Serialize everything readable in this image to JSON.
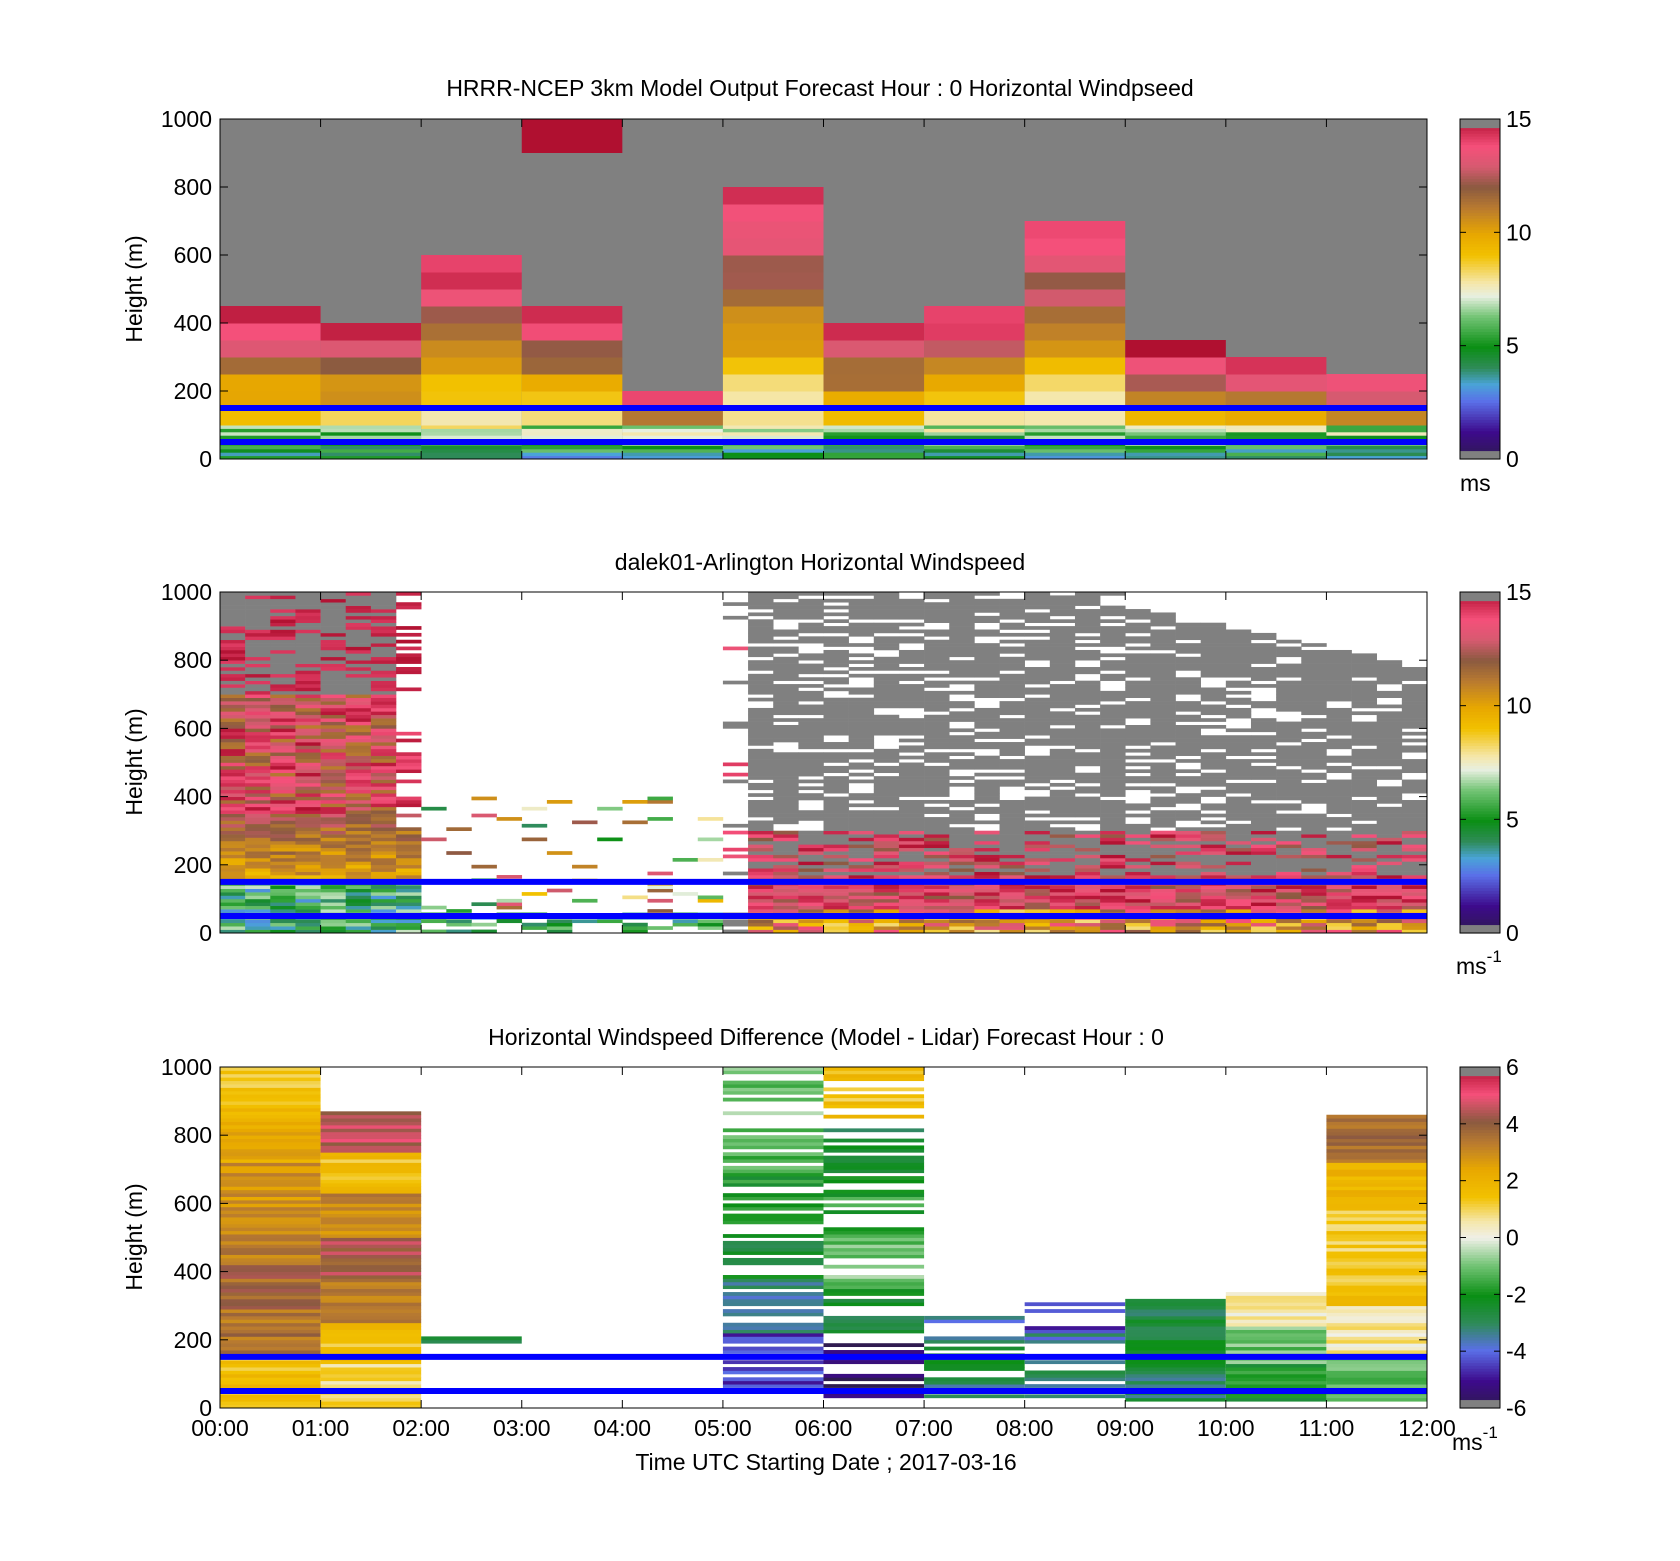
{
  "figure": {
    "xlabel": "Time UTC  Starting Date ; 2017-03-16",
    "x_tick_labels": [
      "00:00",
      "01:00",
      "02:00",
      "03:00",
      "04:00",
      "05:00",
      "06:00",
      "07:00",
      "08:00",
      "09:00",
      "10:00",
      "11:00",
      "12:00"
    ],
    "ref_line_color": "#0000ff",
    "ref_line_heights": [
      150,
      50
    ]
  },
  "chart_data": [
    {
      "type": "heatmap",
      "title": "HRRR-NCEP 3km Model Output   Forecast Hour : 0 Horizontal Windpseed",
      "ylabel": "Height (m)",
      "xlim": [
        0,
        12
      ],
      "ylim": [
        0,
        1000
      ],
      "y_ticks": [
        0,
        200,
        400,
        600,
        800,
        1000
      ],
      "y_tick_labels": [
        "0",
        "200",
        "400",
        "600",
        "800",
        "1000"
      ],
      "colorbar": {
        "min": 0,
        "max": 15,
        "ticks": [
          0,
          5,
          10,
          15
        ],
        "tick_labels": [
          "0",
          "5",
          "10",
          "15"
        ],
        "unit": "ms"
      },
      "background_color": "#808080",
      "columns": [
        {
          "hour": 0,
          "top": 450
        },
        {
          "hour": 1,
          "top": 400
        },
        {
          "hour": 2,
          "top": 600
        },
        {
          "hour": 3,
          "top": 450
        },
        {
          "hour": 4,
          "top": 200
        },
        {
          "hour": 5,
          "top": 800
        },
        {
          "hour": 6,
          "top": 400
        },
        {
          "hour": 7,
          "top": 450
        },
        {
          "hour": 8,
          "top": 700
        },
        {
          "hour": 9,
          "top": 350
        },
        {
          "hour": 10,
          "top": 300
        },
        {
          "hour": 11,
          "top": 250
        }
      ],
      "extra_cells": [
        {
          "hour": 3,
          "y0": 900,
          "y1": 1000,
          "value": 15
        }
      ]
    },
    {
      "type": "heatmap",
      "title": "dalek01-Arlington  Horizontal Windspeed",
      "ylabel": "Height (m)",
      "xlim": [
        0,
        12
      ],
      "ylim": [
        0,
        1000
      ],
      "y_ticks": [
        0,
        200,
        400,
        600,
        800,
        1000
      ],
      "y_tick_labels": [
        "0",
        "200",
        "400",
        "600",
        "800",
        "1000"
      ],
      "colorbar": {
        "min": 0,
        "max": 15,
        "ticks": [
          0,
          5,
          10,
          15
        ],
        "tick_labels": [
          "0",
          "5",
          "10",
          "15"
        ],
        "unit": "ms",
        "unit_sup": "-1"
      },
      "missing_color": "#ffffff",
      "gray_color": "#808080"
    },
    {
      "type": "heatmap",
      "title": "Horizontal Windspeed Difference (Model - Lidar) Forecast Hour : 0",
      "ylabel": "Height (m)",
      "xlim": [
        0,
        12
      ],
      "ylim": [
        0,
        1000
      ],
      "y_ticks": [
        0,
        200,
        400,
        600,
        800,
        1000
      ],
      "y_tick_labels": [
        "0",
        "200",
        "400",
        "600",
        "800",
        "1000"
      ],
      "colorbar": {
        "min": -6,
        "max": 6,
        "ticks": [
          -6,
          -4,
          -2,
          0,
          2,
          4,
          6
        ],
        "tick_labels": [
          "-6",
          "-4",
          "-2",
          "0",
          "2",
          "4",
          "6"
        ],
        "unit": "ms",
        "unit_sup": "-1"
      },
      "columns": [
        {
          "hour": 0,
          "y0": 0,
          "y1": 1000,
          "values_bottom_to_top": [
            1.5,
            3.5,
            3.8,
            3.2,
            2.8,
            2.2,
            1.5
          ]
        },
        {
          "hour": 1,
          "y0": 0,
          "y1": 870,
          "values_bottom_to_top": [
            0.8,
            1.5,
            3.2,
            4.2,
            3.0,
            1.5,
            4.5
          ]
        },
        {
          "hour": 2,
          "y0": 190,
          "y1": 210,
          "values_bottom_to_top": [
            -2.5
          ]
        },
        {
          "hour": 5,
          "y0": 60,
          "y1": 1000,
          "values_bottom_to_top": [
            -4.5,
            -3.5,
            -2.5,
            -2.0,
            -1.5,
            -1.0
          ]
        },
        {
          "hour": 6,
          "y0": 20,
          "y1": 1000,
          "values_bottom_to_top": [
            -5.5,
            -2.5,
            -1.0,
            -1.8,
            -2.5,
            1.5
          ]
        },
        {
          "hour": 7,
          "y0": 20,
          "y1": 270,
          "values_bottom_to_top": [
            -3.0,
            -2.5,
            -3.5
          ]
        },
        {
          "hour": 8,
          "y0": 20,
          "y1": 310,
          "values_bottom_to_top": [
            -3.0,
            -3.5,
            -4.5
          ]
        },
        {
          "hour": 9,
          "y0": 20,
          "y1": 320,
          "values_bottom_to_top": [
            -3.0,
            -2.5,
            -2.8
          ]
        },
        {
          "hour": 10,
          "y0": 20,
          "y1": 340,
          "values_bottom_to_top": [
            -2.0,
            -1.0,
            0.5
          ]
        },
        {
          "hour": 11,
          "y0": 20,
          "y1": 860,
          "values_bottom_to_top": [
            -1.2,
            0.5,
            1.5,
            1.2,
            2.0,
            3.5
          ]
        }
      ]
    }
  ]
}
